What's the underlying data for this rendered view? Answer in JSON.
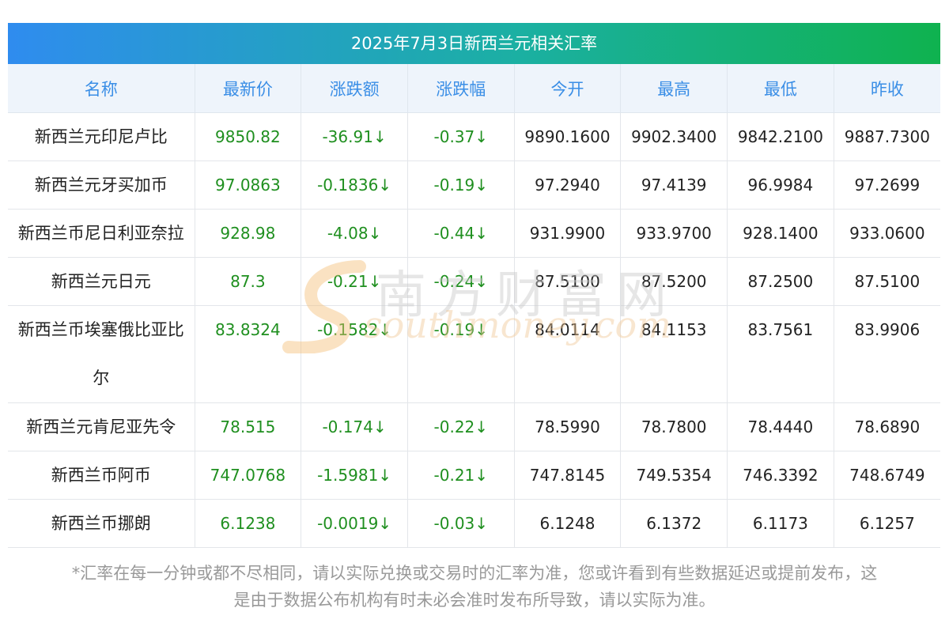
{
  "title": "2025年7月3日新西兰元相关汇率",
  "watermark": {
    "cn": "南方财富网",
    "en": "southmoney.com"
  },
  "headers": [
    "名称",
    "最新价",
    "涨跌额",
    "涨跌幅",
    "今开",
    "最高",
    "最低",
    "昨收"
  ],
  "rows": [
    {
      "name": "新西兰元印尼卢比",
      "latest": "9850.82",
      "change": "-36.91↓",
      "pct": "-0.37↓",
      "open": "9890.1600",
      "high": "9902.3400",
      "low": "9842.2100",
      "prev": "9887.7300"
    },
    {
      "name": "新西兰元牙买加币",
      "latest": "97.0863",
      "change": "-0.1836↓",
      "pct": "-0.19↓",
      "open": "97.2940",
      "high": "97.4139",
      "low": "96.9984",
      "prev": "97.2699"
    },
    {
      "name": "新西兰币尼日利亚奈拉",
      "latest": "928.98",
      "change": "-4.08↓",
      "pct": "-0.44↓",
      "open": "931.9900",
      "high": "933.9700",
      "low": "928.1400",
      "prev": "933.0600"
    },
    {
      "name": "新西兰元日元",
      "latest": "87.3",
      "change": "-0.21↓",
      "pct": "-0.24↓",
      "open": "87.5100",
      "high": "87.5200",
      "low": "87.2500",
      "prev": "87.5100"
    },
    {
      "name": "新西兰币埃塞俄比亚比尔",
      "name_line1": "新西兰币埃塞俄比亚比",
      "name_line2": "尔",
      "latest": "83.8324",
      "change": "-0.1582↓",
      "pct": "-0.19↓",
      "open": "84.0114",
      "high": "84.1153",
      "low": "83.7561",
      "prev": "83.9906"
    },
    {
      "name": "新西兰元肯尼亚先令",
      "latest": "78.515",
      "change": "-0.174↓",
      "pct": "-0.22↓",
      "open": "78.5990",
      "high": "78.7800",
      "low": "78.4440",
      "prev": "78.6890"
    },
    {
      "name": "新西兰币阿币",
      "latest": "747.0768",
      "change": "-1.5981↓",
      "pct": "-0.21↓",
      "open": "747.8145",
      "high": "749.5354",
      "low": "746.3392",
      "prev": "748.6749"
    },
    {
      "name": "新西兰币挪朗",
      "latest": "6.1238",
      "change": "-0.0019↓",
      "pct": "-0.03↓",
      "open": "6.1248",
      "high": "6.1372",
      "low": "6.1173",
      "prev": "6.1257"
    }
  ],
  "footnote": {
    "line1": "*汇率在每一分钟或都不尽相同，请以实际兑换或交易时的汇率为准，您或许看到有些数据延迟或提前发布，这",
    "line2": "是由于数据公布机构有时未必会准时发布所导致，请以实际为准。"
  },
  "colors": {
    "header_text": "#3a8ee6",
    "up_down_green": "#1f8f1f",
    "title_gradient_start": "#2f8cef",
    "title_gradient_end": "#0fb24f"
  }
}
